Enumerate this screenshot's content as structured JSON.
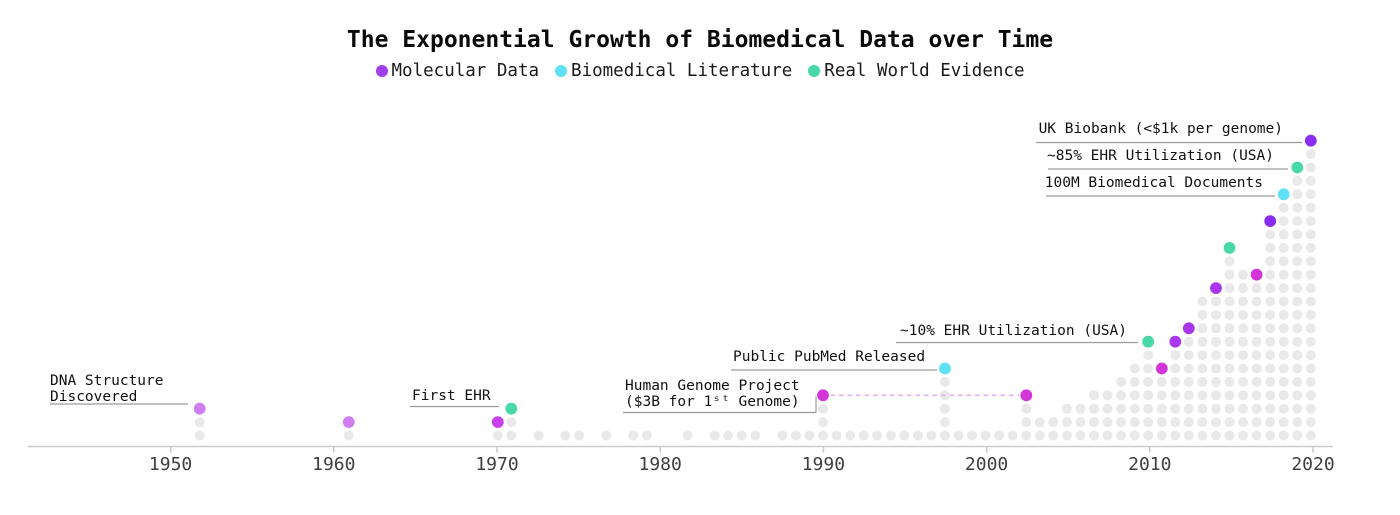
{
  "title": "The Exponential Growth of Biomedical Data over Time",
  "legend": {
    "items": [
      {
        "label": "Molecular Data",
        "color_key": "legend_purple"
      },
      {
        "label": "Biomedical Literature",
        "color_key": "cyan"
      },
      {
        "label": "Real World Evidence",
        "color_key": "teal"
      }
    ]
  },
  "palette": {
    "legend_purple": "#9e41ea",
    "purple": "#8b2df0",
    "violet": "#aa36ec",
    "magenta": "#c841ec",
    "bright_magenta": "#d335d8",
    "orchid": "#d07df0",
    "cyan": "#5fe1f5",
    "teal": "#49d9a6",
    "gray_dot": "#e9e9e9",
    "axis": "#cacaca",
    "underline": "#9c9c9c",
    "dashed_connector": "#dfb3ef",
    "tick_label": "#3f3f3f"
  },
  "x_axis": {
    "tick_labels": [
      "1950",
      "1960",
      "1970",
      "1980",
      "1990",
      "2000",
      "2010",
      "2020"
    ]
  },
  "chart_data": {
    "type": "dot-pictogram-timeline",
    "title": "The Exponential Growth of Biomedical Data over Time",
    "series_legend": [
      "Molecular Data",
      "Biomedical Literature",
      "Real World Evidence"
    ],
    "x_axis_years": [
      1950,
      1960,
      1970,
      1980,
      1990,
      2000,
      2010,
      2020
    ],
    "x_range_years": [
      1944,
      2020
    ],
    "grid": "square grid of dots; each column is a time slot, dot count shows data volume growing exponentially",
    "columns_format": "[column_index, dot_count, top_dot_color(optional)] ; column 0 = 1990 tick, ~13.55px per column",
    "columns": [
      [
        -46,
        3,
        "orchid"
      ],
      [
        -35,
        2,
        "orchid"
      ],
      [
        -24,
        2,
        "magenta"
      ],
      [
        -23,
        3,
        "teal"
      ],
      [
        -21,
        1
      ],
      [
        -19,
        1
      ],
      [
        -18,
        1
      ],
      [
        -16,
        1
      ],
      [
        -14,
        1
      ],
      [
        -13,
        1
      ],
      [
        -10,
        1
      ],
      [
        -8,
        1
      ],
      [
        -7,
        1
      ],
      [
        -6,
        1
      ],
      [
        -5,
        1
      ],
      [
        -3,
        1
      ],
      [
        -2,
        1
      ],
      [
        -1,
        1
      ],
      [
        0,
        4,
        "bright_magenta"
      ],
      [
        1,
        1
      ],
      [
        2,
        1
      ],
      [
        3,
        1
      ],
      [
        4,
        1
      ],
      [
        5,
        1
      ],
      [
        6,
        1
      ],
      [
        7,
        1
      ],
      [
        8,
        1
      ],
      [
        9,
        6,
        "cyan"
      ],
      [
        10,
        1
      ],
      [
        11,
        1
      ],
      [
        12,
        1
      ],
      [
        13,
        1
      ],
      [
        14,
        1
      ],
      [
        15,
        4,
        "bright_magenta"
      ],
      [
        16,
        2
      ],
      [
        17,
        2
      ],
      [
        18,
        3
      ],
      [
        19,
        3
      ],
      [
        20,
        4
      ],
      [
        21,
        4
      ],
      [
        22,
        5
      ],
      [
        23,
        6
      ],
      [
        24,
        8,
        "teal"
      ],
      [
        25,
        6,
        "bright_magenta"
      ],
      [
        26,
        8,
        "violet"
      ],
      [
        27,
        9,
        "violet"
      ],
      [
        28,
        11
      ],
      [
        29,
        12,
        "violet"
      ],
      [
        30,
        15,
        "teal"
      ],
      [
        31,
        13
      ],
      [
        32,
        13,
        "bright_magenta"
      ],
      [
        33,
        17,
        "purple"
      ],
      [
        34,
        19,
        "cyan"
      ],
      [
        35,
        21,
        "teal"
      ],
      [
        36,
        23,
        "purple"
      ]
    ],
    "milestones": [
      {
        "id": "dna",
        "lines": [
          "DNA Structure",
          "Discovered"
        ],
        "category": "Molecular Data",
        "dot_color": "orchid",
        "col": -46
      },
      {
        "id": "first-ehr",
        "lines": [
          "First EHR"
        ],
        "category": "Real World Evidence",
        "dot_color": "teal",
        "col": -23
      },
      {
        "id": "hgp",
        "lines": [
          "Human Genome Project",
          "($3B for 1ˢᵗ Genome)"
        ],
        "category": "Molecular Data",
        "dot_color": "bright_magenta",
        "col": 0,
        "span_to_col": 15,
        "connector": "dashed"
      },
      {
        "id": "pubmed",
        "lines": [
          "Public PubMed Released"
        ],
        "category": "Biomedical Literature",
        "dot_color": "cyan",
        "col": 9
      },
      {
        "id": "ehr-10",
        "lines": [
          "~10% EHR Utilization (USA)"
        ],
        "category": "Real World Evidence",
        "dot_color": "teal",
        "col": 24
      },
      {
        "id": "docs-100m",
        "lines": [
          "100M Biomedical Documents"
        ],
        "category": "Biomedical Literature",
        "dot_color": "cyan",
        "col": 34
      },
      {
        "id": "ehr-85",
        "lines": [
          "~85% EHR Utilization (USA)"
        ],
        "category": "Real World Evidence",
        "dot_color": "teal",
        "col": 35
      },
      {
        "id": "biobank",
        "lines": [
          "UK Biobank (<$1k per genome)"
        ],
        "category": "Molecular Data",
        "dot_color": "purple",
        "col": 36
      }
    ]
  }
}
